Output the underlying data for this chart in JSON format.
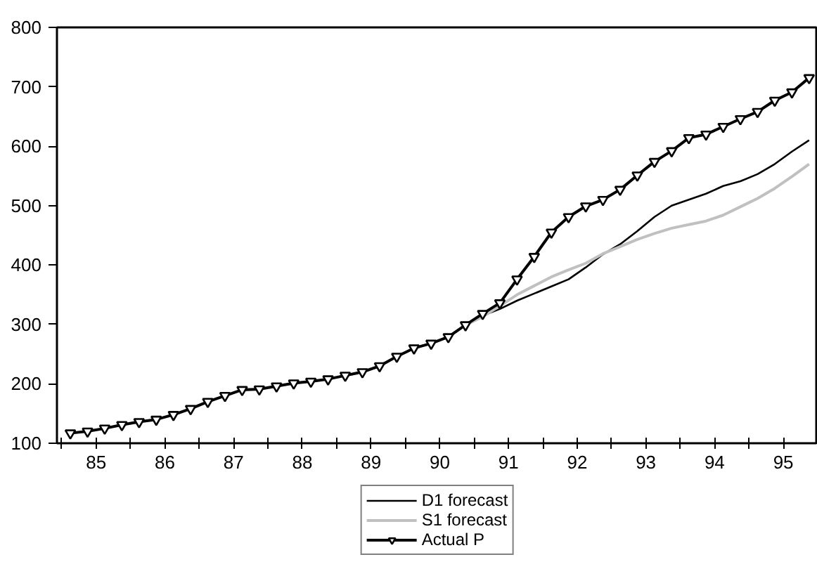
{
  "chart_data": {
    "type": "line",
    "x": [
      85.125,
      85.375,
      85.625,
      85.875,
      86.125,
      86.375,
      86.625,
      86.875,
      87.125,
      87.375,
      87.625,
      87.875,
      88.125,
      88.375,
      88.625,
      88.875,
      89.125,
      89.375,
      89.625,
      89.875,
      90.125,
      90.375,
      90.625,
      90.875,
      91.125,
      91.375,
      91.625,
      91.875,
      92.125,
      92.375,
      92.625,
      92.875,
      93.125,
      93.375,
      93.625,
      93.875,
      94.125,
      94.375,
      94.625,
      94.875,
      95.125,
      95.375,
      95.625,
      95.875
    ],
    "series": [
      {
        "name": "D1 forecast",
        "color": "#000000",
        "x": [
          90.875,
          91.125,
          91.375,
          91.625,
          91.875,
          92.125,
          92.375,
          92.625,
          92.875,
          93.125,
          93.375,
          93.625,
          93.875,
          94.125,
          94.375,
          94.625,
          94.875,
          95.125,
          95.375,
          95.625,
          95.875
        ],
        "values": [
          299,
          315,
          326,
          340,
          352,
          364,
          376,
          396,
          418,
          435,
          457,
          481,
          500,
          510,
          520,
          533,
          541,
          553,
          570,
          591,
          610
        ]
      },
      {
        "name": "S1 forecast",
        "color": "#c0c0c0",
        "x": [
          90.875,
          91.125,
          91.375,
          91.625,
          91.875,
          92.125,
          92.375,
          92.625,
          92.875,
          93.125,
          93.375,
          93.625,
          93.875,
          94.125,
          94.375,
          94.625,
          94.875,
          95.125,
          95.375,
          95.625,
          95.875
        ],
        "values": [
          299,
          313,
          331,
          350,
          365,
          380,
          392,
          403,
          419,
          431,
          443,
          453,
          462,
          468,
          474,
          484,
          498,
          512,
          529,
          549,
          570
        ]
      },
      {
        "name": "Actual P",
        "color": "#000000",
        "marker": "triangle",
        "values": [
          117,
          120,
          125,
          131,
          136,
          140,
          148,
          158,
          170,
          180,
          190,
          191,
          196,
          201,
          204,
          208,
          214,
          220,
          230,
          246,
          260,
          268,
          279,
          299,
          318,
          336,
          376,
          414,
          455,
          481,
          499,
          510,
          527,
          551,
          574,
          592,
          614,
          620,
          633,
          646,
          658,
          677,
          691,
          715
        ]
      }
    ],
    "xlim": [
      84.93,
      96.0
    ],
    "xticks": [
      {
        "value": 85,
        "label": null
      },
      {
        "value": 85.5,
        "label": "85"
      },
      {
        "value": 86,
        "label": null
      },
      {
        "value": 86.5,
        "label": "86"
      },
      {
        "value": 87,
        "label": null
      },
      {
        "value": 87.5,
        "label": "87"
      },
      {
        "value": 88,
        "label": null
      },
      {
        "value": 88.5,
        "label": "88"
      },
      {
        "value": 89,
        "label": null
      },
      {
        "value": 89.5,
        "label": "89"
      },
      {
        "value": 90,
        "label": null
      },
      {
        "value": 90.5,
        "label": "90"
      },
      {
        "value": 91,
        "label": null
      },
      {
        "value": 91.5,
        "label": "91"
      },
      {
        "value": 92,
        "label": null
      },
      {
        "value": 92.5,
        "label": "92"
      },
      {
        "value": 93,
        "label": null
      },
      {
        "value": 93.5,
        "label": "93"
      },
      {
        "value": 94,
        "label": null
      },
      {
        "value": 94.5,
        "label": "94"
      },
      {
        "value": 95,
        "label": null
      },
      {
        "value": 95.5,
        "label": "95"
      }
    ],
    "ylim": [
      100,
      800
    ],
    "yticks": [
      100,
      200,
      300,
      400,
      500,
      600,
      700,
      800
    ],
    "grid": false,
    "legend": "bottom"
  }
}
